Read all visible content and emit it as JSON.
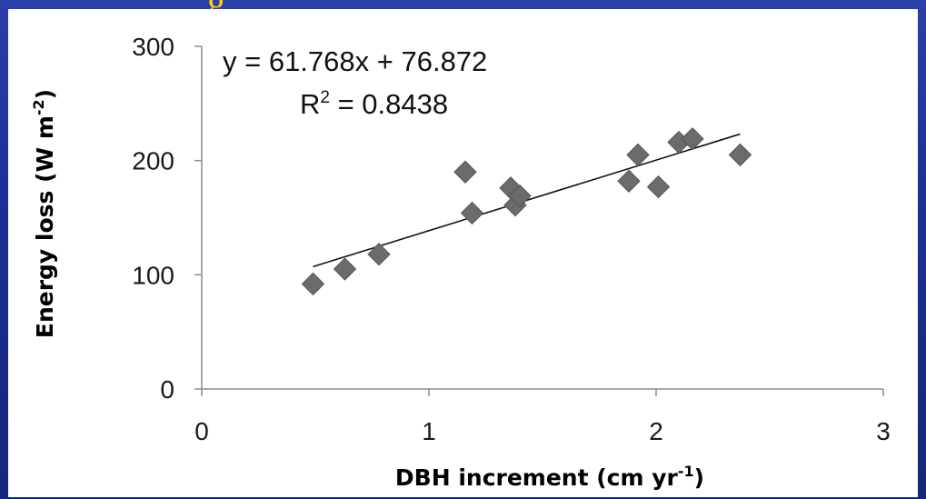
{
  "slide": {
    "title_fragment": "g"
  },
  "chart_data": {
    "type": "scatter",
    "title": "",
    "xlabel": "DBH increment (cm yr",
    "xlabel_sup": "-1",
    "xlabel_end": ")",
    "ylabel": "Energy loss (W m",
    "ylabel_sup": "-2",
    "ylabel_end": ")",
    "xlim": [
      0,
      3
    ],
    "ylim": [
      0,
      300
    ],
    "x_ticks": [
      0,
      1,
      2,
      3
    ],
    "y_ticks": [
      0,
      100,
      200,
      300
    ],
    "x_tick_labels": [
      "0",
      "1",
      "2",
      "3"
    ],
    "y_tick_labels": [
      "0",
      "100",
      "200",
      "300"
    ],
    "grid": false,
    "legend": "none",
    "marker": "diamond",
    "marker_color": "#6b6b6b",
    "points": [
      {
        "x": 0.49,
        "y": 92
      },
      {
        "x": 0.63,
        "y": 105
      },
      {
        "x": 0.78,
        "y": 118
      },
      {
        "x": 1.16,
        "y": 190
      },
      {
        "x": 1.19,
        "y": 154
      },
      {
        "x": 1.36,
        "y": 176
      },
      {
        "x": 1.38,
        "y": 161
      },
      {
        "x": 1.4,
        "y": 169
      },
      {
        "x": 1.88,
        "y": 182
      },
      {
        "x": 1.92,
        "y": 205
      },
      {
        "x": 2.01,
        "y": 177
      },
      {
        "x": 2.1,
        "y": 216
      },
      {
        "x": 2.16,
        "y": 219
      },
      {
        "x": 2.37,
        "y": 205
      }
    ],
    "trendline": {
      "slope": 61.768,
      "intercept": 76.872,
      "x_range": [
        0.49,
        2.37
      ],
      "color": "#111111"
    },
    "equation_label": "y = 61.768x + 76.872",
    "r2_prefix": "R",
    "r2_sup": "2",
    "r2_suffix": " = 0.8438"
  }
}
